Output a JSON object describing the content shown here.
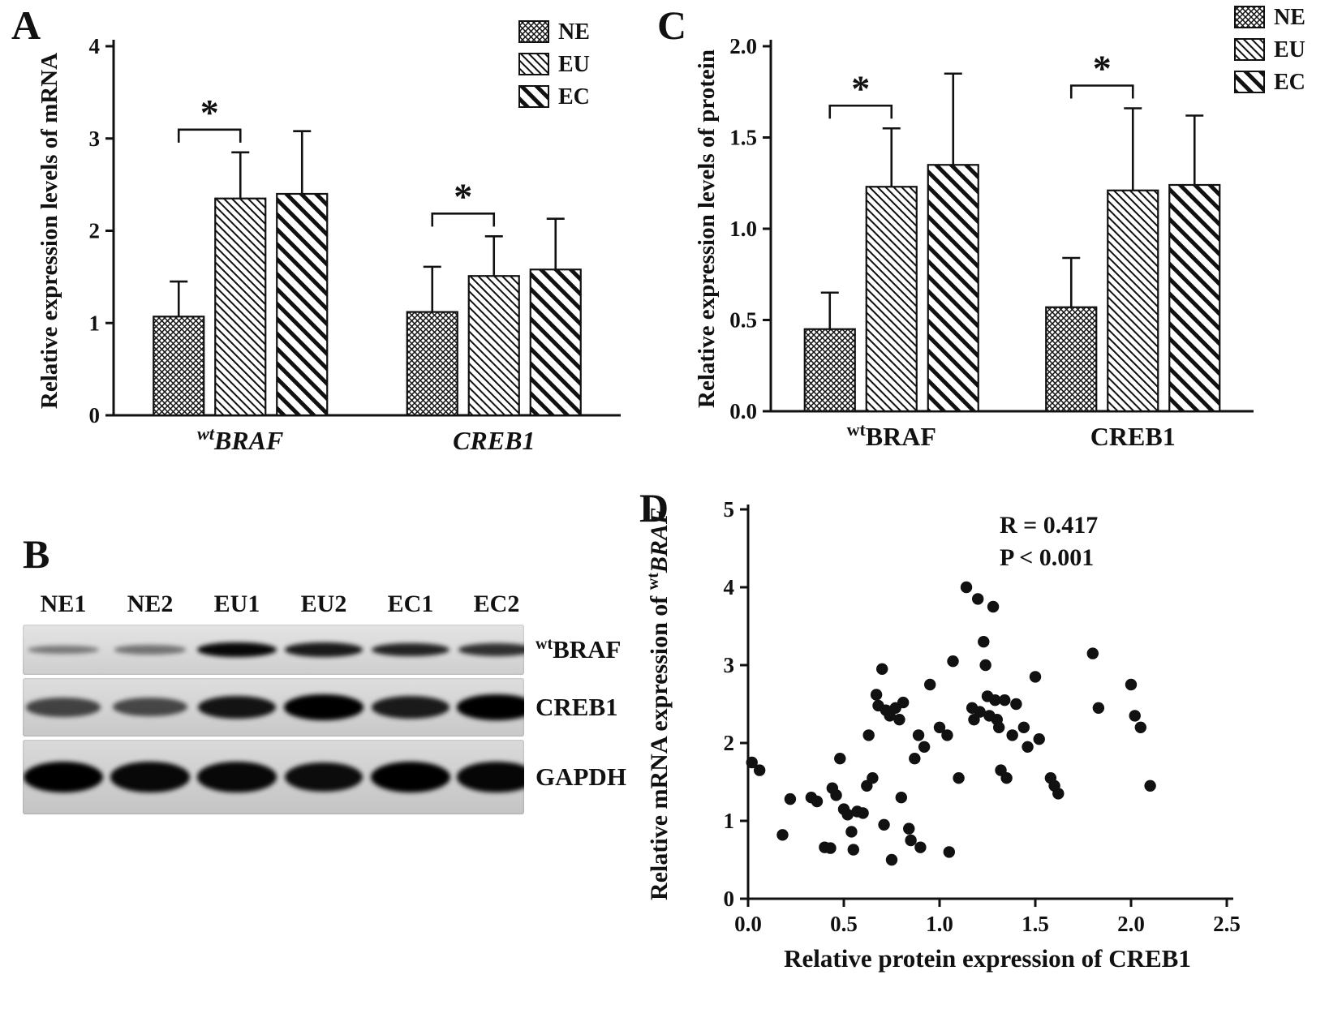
{
  "panels": {
    "a_label": "A",
    "b_label": "B",
    "c_label": "C",
    "d_label": "D"
  },
  "chart_data": [
    {
      "panel": "A",
      "type": "bar",
      "title": "",
      "ylabel": "Relative expression levels of mRNA",
      "ylim": [
        0,
        4
      ],
      "yticks": [
        "0",
        "1",
        "2",
        "3",
        "4"
      ],
      "grid": false,
      "legend_position": "top-right",
      "categories": [
        {
          "sup": "wt",
          "label": "BRAF",
          "italic": true
        },
        {
          "sup": "",
          "label": "CREB1",
          "italic": true
        }
      ],
      "series": [
        {
          "name": "NE",
          "pattern": "crosshatch",
          "values": [
            1.07,
            1.12
          ],
          "errors": [
            0.38,
            0.49
          ]
        },
        {
          "name": "EU",
          "pattern": "diag-fine",
          "values": [
            2.35,
            1.51
          ],
          "errors": [
            0.5,
            0.43
          ]
        },
        {
          "name": "EC",
          "pattern": "diag-bold",
          "values": [
            2.4,
            1.58
          ],
          "errors": [
            0.68,
            0.55
          ]
        }
      ],
      "significance": [
        {
          "category": 0,
          "from": 0,
          "to": 1,
          "label": "*"
        },
        {
          "category": 1,
          "from": 0,
          "to": 1,
          "label": "*"
        }
      ]
    },
    {
      "panel": "C",
      "type": "bar",
      "title": "",
      "ylabel": "Relative expression levels of protein",
      "ylim": [
        0,
        2
      ],
      "yticks": [
        "0.0",
        "0.5",
        "1.0",
        "1.5",
        "2.0"
      ],
      "grid": false,
      "legend_position": "top-right",
      "categories": [
        {
          "sup": "wt",
          "label": "BRAF",
          "italic": false
        },
        {
          "sup": "",
          "label": "CREB1",
          "italic": false
        }
      ],
      "series": [
        {
          "name": "NE",
          "pattern": "crosshatch",
          "values": [
            0.45,
            0.57
          ],
          "errors": [
            0.2,
            0.27
          ]
        },
        {
          "name": "EU",
          "pattern": "diag-fine",
          "values": [
            1.23,
            1.21
          ],
          "errors": [
            0.32,
            0.45
          ]
        },
        {
          "name": "EC",
          "pattern": "diag-bold",
          "values": [
            1.35,
            1.24
          ],
          "errors": [
            0.5,
            0.38
          ]
        }
      ],
      "significance": [
        {
          "category": 0,
          "from": 0,
          "to": 1,
          "label": "*"
        },
        {
          "category": 1,
          "from": 0,
          "to": 1,
          "label": "*"
        }
      ]
    },
    {
      "panel": "D",
      "type": "scatter",
      "xlabel": "Relative protein expression of CREB1",
      "ylabel_parts": {
        "pre": "Relative mRNA expression of ",
        "sup": "wt",
        "gene": "BRAF"
      },
      "xlim": [
        0,
        2.5
      ],
      "ylim": [
        0,
        5
      ],
      "xticks": [
        "0.0",
        "0.5",
        "1.0",
        "1.5",
        "2.0",
        "2.5"
      ],
      "yticks": [
        "0",
        "1",
        "2",
        "3",
        "4",
        "5"
      ],
      "annotation": [
        "R = 0.417",
        "P < 0.001"
      ],
      "points": [
        [
          0.02,
          1.75
        ],
        [
          0.06,
          1.65
        ],
        [
          0.18,
          0.82
        ],
        [
          0.22,
          1.28
        ],
        [
          0.33,
          1.3
        ],
        [
          0.36,
          1.25
        ],
        [
          0.4,
          0.66
        ],
        [
          0.43,
          0.65
        ],
        [
          0.44,
          1.42
        ],
        [
          0.46,
          1.33
        ],
        [
          0.48,
          1.8
        ],
        [
          0.5,
          1.15
        ],
        [
          0.52,
          1.08
        ],
        [
          0.54,
          0.86
        ],
        [
          0.55,
          0.63
        ],
        [
          0.57,
          1.12
        ],
        [
          0.6,
          1.1
        ],
        [
          0.62,
          1.45
        ],
        [
          0.63,
          2.1
        ],
        [
          0.65,
          1.55
        ],
        [
          0.67,
          2.62
        ],
        [
          0.68,
          2.48
        ],
        [
          0.7,
          2.95
        ],
        [
          0.71,
          0.95
        ],
        [
          0.72,
          2.42
        ],
        [
          0.74,
          2.35
        ],
        [
          0.75,
          0.5
        ],
        [
          0.77,
          2.45
        ],
        [
          0.79,
          2.3
        ],
        [
          0.8,
          1.3
        ],
        [
          0.81,
          2.52
        ],
        [
          0.84,
          0.9
        ],
        [
          0.85,
          0.75
        ],
        [
          0.87,
          1.8
        ],
        [
          0.89,
          2.1
        ],
        [
          0.9,
          0.66
        ],
        [
          0.92,
          1.95
        ],
        [
          0.95,
          2.75
        ],
        [
          1.0,
          2.2
        ],
        [
          1.04,
          2.1
        ],
        [
          1.05,
          0.6
        ],
        [
          1.07,
          3.05
        ],
        [
          1.1,
          1.55
        ],
        [
          1.14,
          4.0
        ],
        [
          1.17,
          2.45
        ],
        [
          1.18,
          2.3
        ],
        [
          1.2,
          3.85
        ],
        [
          1.21,
          2.4
        ],
        [
          1.23,
          3.3
        ],
        [
          1.24,
          3.0
        ],
        [
          1.25,
          2.6
        ],
        [
          1.26,
          2.35
        ],
        [
          1.28,
          3.75
        ],
        [
          1.29,
          2.55
        ],
        [
          1.3,
          2.3
        ],
        [
          1.31,
          2.2
        ],
        [
          1.32,
          1.65
        ],
        [
          1.34,
          2.55
        ],
        [
          1.35,
          1.55
        ],
        [
          1.38,
          2.1
        ],
        [
          1.4,
          2.5
        ],
        [
          1.44,
          2.2
        ],
        [
          1.46,
          1.95
        ],
        [
          1.5,
          2.85
        ],
        [
          1.52,
          2.05
        ],
        [
          1.58,
          1.55
        ],
        [
          1.6,
          1.45
        ],
        [
          1.62,
          1.35
        ],
        [
          1.8,
          3.15
        ],
        [
          1.83,
          2.45
        ],
        [
          2.0,
          2.75
        ],
        [
          2.02,
          2.35
        ],
        [
          2.05,
          2.2
        ],
        [
          2.1,
          1.45
        ]
      ]
    }
  ],
  "blot": {
    "lanes": [
      "NE1",
      "NE2",
      "EU1",
      "EU2",
      "EC1",
      "EC2"
    ],
    "rows": [
      {
        "sup": "wt",
        "label": "BRAF",
        "intensities": [
          0.3,
          0.32,
          0.95,
          0.85,
          0.8,
          0.72
        ]
      },
      {
        "sup": "",
        "label": "CREB1",
        "intensities": [
          0.6,
          0.58,
          0.88,
          1.0,
          0.85,
          1.0
        ]
      },
      {
        "sup": "",
        "label": "GAPDH",
        "intensities": [
          1.0,
          0.95,
          0.95,
          0.92,
          1.0,
          0.96
        ]
      }
    ]
  }
}
